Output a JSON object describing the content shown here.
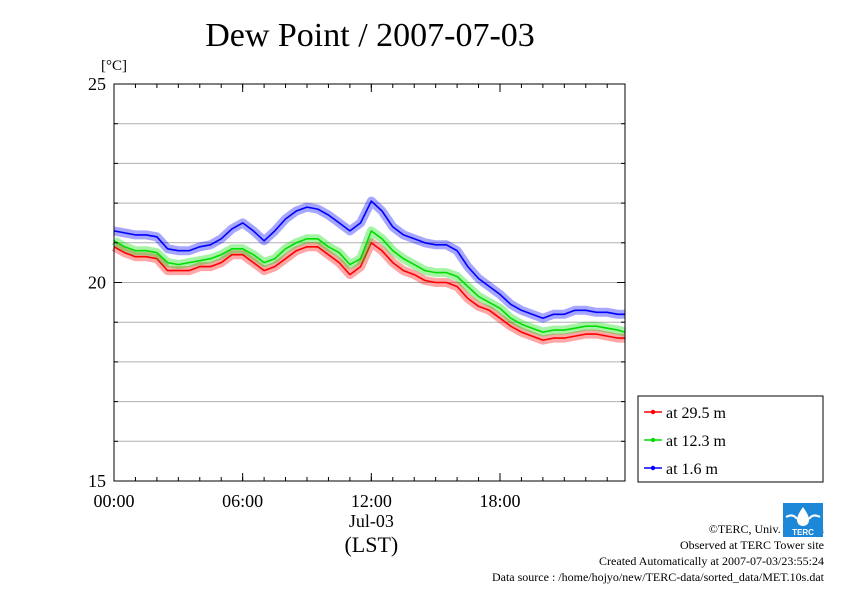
{
  "chart_data": {
    "type": "line",
    "title": "Dew Point / 2007-07-03",
    "ylabel": "[°C]",
    "xlabel": "(LST)",
    "date_label": "Jul-03",
    "x_unit": "hour",
    "xlim": [
      0,
      23.83
    ],
    "ylim": [
      15,
      25
    ],
    "y_ticks": [
      15,
      20,
      25
    ],
    "y_tick_labels": [
      "15",
      "20",
      "25"
    ],
    "x_ticks": [
      0,
      6,
      12,
      18
    ],
    "x_tick_labels": [
      "00:00",
      "06:00",
      "12:00",
      "18:00"
    ],
    "y_minor_step": 1,
    "grid": true,
    "legend_position": "lower-right, outside plot",
    "series": [
      {
        "name": "at 29.5 m",
        "color": "#ff0000",
        "x": [
          0,
          0.5,
          1,
          1.5,
          2,
          2.5,
          3,
          3.5,
          4,
          4.5,
          5,
          5.5,
          6,
          6.5,
          7,
          7.5,
          8,
          8.5,
          9,
          9.5,
          10,
          10.5,
          11,
          11.5,
          12,
          12.5,
          13,
          13.5,
          14,
          14.5,
          15,
          15.5,
          16,
          16.5,
          17,
          17.5,
          18,
          18.5,
          19,
          19.5,
          20,
          20.5,
          21,
          21.5,
          22,
          22.5,
          23,
          23.5,
          23.83
        ],
        "y": [
          20.9,
          20.75,
          20.65,
          20.65,
          20.6,
          20.3,
          20.3,
          20.3,
          20.4,
          20.4,
          20.5,
          20.7,
          20.7,
          20.5,
          20.3,
          20.4,
          20.6,
          20.8,
          20.9,
          20.9,
          20.7,
          20.5,
          20.2,
          20.4,
          21.0,
          20.8,
          20.5,
          20.3,
          20.2,
          20.05,
          20.0,
          20.0,
          19.9,
          19.6,
          19.4,
          19.3,
          19.1,
          18.9,
          18.75,
          18.65,
          18.55,
          18.6,
          18.6,
          18.65,
          18.7,
          18.7,
          18.65,
          18.6,
          18.6
        ]
      },
      {
        "name": "at 12.3 m",
        "color": "#00dd00",
        "x": [
          0,
          0.5,
          1,
          1.5,
          2,
          2.5,
          3,
          3.5,
          4,
          4.5,
          5,
          5.5,
          6,
          6.5,
          7,
          7.5,
          8,
          8.5,
          9,
          9.5,
          10,
          10.5,
          11,
          11.5,
          12,
          12.5,
          13,
          13.5,
          14,
          14.5,
          15,
          15.5,
          16,
          16.5,
          17,
          17.5,
          18,
          18.5,
          19,
          19.5,
          20,
          20.5,
          21,
          21.5,
          22,
          22.5,
          23,
          23.5,
          23.83
        ],
        "y": [
          21.05,
          20.9,
          20.8,
          20.8,
          20.75,
          20.5,
          20.45,
          20.5,
          20.55,
          20.6,
          20.7,
          20.85,
          20.85,
          20.7,
          20.5,
          20.6,
          20.85,
          21.0,
          21.1,
          21.1,
          20.9,
          20.75,
          20.45,
          20.6,
          21.3,
          21.1,
          20.8,
          20.6,
          20.45,
          20.3,
          20.25,
          20.25,
          20.15,
          19.9,
          19.65,
          19.5,
          19.35,
          19.1,
          18.95,
          18.85,
          18.75,
          18.8,
          18.8,
          18.85,
          18.9,
          18.9,
          18.85,
          18.8,
          18.75
        ]
      },
      {
        "name": "at 1.6 m",
        "color": "#0000ff",
        "x": [
          0,
          0.5,
          1,
          1.5,
          2,
          2.5,
          3,
          3.5,
          4,
          4.5,
          5,
          5.5,
          6,
          6.5,
          7,
          7.5,
          8,
          8.5,
          9,
          9.5,
          10,
          10.5,
          11,
          11.5,
          12,
          12.5,
          13,
          13.5,
          14,
          14.5,
          15,
          15.5,
          16,
          16.5,
          17,
          17.5,
          18,
          18.5,
          19,
          19.5,
          20,
          20.5,
          21,
          21.5,
          22,
          22.5,
          23,
          23.5,
          23.83
        ],
        "y": [
          21.3,
          21.25,
          21.2,
          21.2,
          21.15,
          20.85,
          20.8,
          20.8,
          20.9,
          20.95,
          21.1,
          21.35,
          21.5,
          21.3,
          21.05,
          21.3,
          21.6,
          21.8,
          21.9,
          21.85,
          21.7,
          21.5,
          21.3,
          21.5,
          22.05,
          21.8,
          21.4,
          21.2,
          21.1,
          21.0,
          20.95,
          20.95,
          20.8,
          20.4,
          20.1,
          19.9,
          19.7,
          19.45,
          19.3,
          19.2,
          19.1,
          19.2,
          19.2,
          19.3,
          19.3,
          19.25,
          19.25,
          19.2,
          19.2
        ]
      }
    ]
  },
  "credits": {
    "copyright": "©TERC, Univ. Tsukuba",
    "site": "Observed at TERC Tower site",
    "created": "Created Automatically at 2007-07-03/23:55:24",
    "source": "Data source : /home/hojyo/new/TERC-data/sorted_data/MET.10s.dat"
  },
  "logo": {
    "text": "TERC",
    "icon": "terc-logo-icon"
  }
}
